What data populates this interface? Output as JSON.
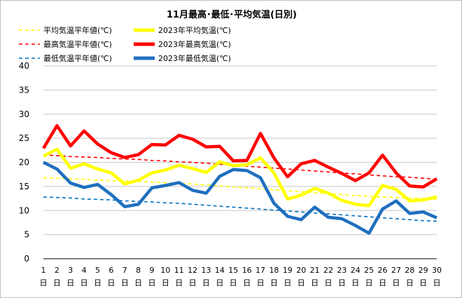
{
  "chart_data": {
    "type": "line",
    "title": "11月最高･最低･平均気温(日別)",
    "ylim": [
      0,
      40
    ],
    "yticks": [
      0,
      5,
      10,
      15,
      20,
      25,
      30,
      35,
      40
    ],
    "grid": true,
    "legend_position": "top",
    "x": [
      1,
      2,
      3,
      4,
      5,
      6,
      7,
      8,
      9,
      10,
      11,
      12,
      13,
      14,
      15,
      16,
      17,
      18,
      19,
      20,
      21,
      22,
      23,
      24,
      25,
      26,
      27,
      28,
      29,
      30
    ],
    "x_suffix": "日",
    "series": [
      {
        "name": "平均気温平年値(℃)",
        "color": "#ffff00",
        "style": "dashed",
        "values": [
          16.8,
          16.7,
          16.6,
          16.5,
          16.3,
          16.2,
          16.1,
          16.0,
          15.9,
          15.8,
          15.6,
          15.5,
          15.3,
          15.1,
          14.9,
          14.7,
          14.5,
          14.3,
          14.1,
          13.9,
          13.7,
          13.5,
          13.3,
          13.1,
          12.9,
          12.8,
          12.7,
          12.6,
          12.5,
          12.4
        ]
      },
      {
        "name": "2023年平均気温(℃)",
        "color": "#ffff00",
        "style": "solid",
        "values": [
          21.3,
          22.7,
          18.8,
          19.7,
          18.6,
          17.8,
          15.5,
          16.3,
          17.8,
          18.4,
          19.4,
          18.7,
          17.9,
          20.1,
          19.3,
          19.5,
          20.9,
          17.8,
          12.4,
          13.2,
          14.6,
          13.6,
          12.1,
          11.3,
          11.0,
          15.2,
          14.4,
          12.0,
          12.2,
          12.8
        ]
      },
      {
        "name": "最高気温平年値(℃)",
        "color": "#ff0000",
        "style": "dashed",
        "values": [
          21.5,
          21.4,
          21.2,
          21.1,
          21.0,
          20.8,
          20.7,
          20.6,
          20.4,
          20.3,
          20.1,
          20.0,
          19.8,
          19.6,
          19.4,
          19.2,
          19.0,
          18.8,
          18.6,
          18.4,
          18.2,
          18.0,
          17.8,
          17.6,
          17.4,
          17.2,
          17.0,
          16.9,
          16.7,
          16.5
        ]
      },
      {
        "name": "2023年最高気温(℃)",
        "color": "#ff0000",
        "style": "solid",
        "values": [
          22.9,
          27.6,
          23.4,
          26.5,
          23.8,
          22.0,
          21.0,
          21.6,
          23.7,
          23.6,
          25.6,
          24.8,
          23.2,
          23.3,
          20.3,
          20.4,
          26.0,
          20.9,
          17.0,
          19.7,
          20.4,
          19.0,
          17.7,
          16.2,
          17.8,
          21.5,
          17.8,
          15.1,
          14.9,
          16.6
        ]
      },
      {
        "name": "最低気温平年値(℃)",
        "color": "#0070c0",
        "style": "dashed",
        "values": [
          12.8,
          12.7,
          12.6,
          12.4,
          12.3,
          12.2,
          12.0,
          11.9,
          11.8,
          11.6,
          11.5,
          11.3,
          11.1,
          10.9,
          10.7,
          10.5,
          10.3,
          10.1,
          9.9,
          9.7,
          9.5,
          9.3,
          9.1,
          8.9,
          8.7,
          8.5,
          8.3,
          8.1,
          7.9,
          7.8
        ]
      },
      {
        "name": "2023年最低気温(℃)",
        "color": "#1f6fbf",
        "style": "solid",
        "values": [
          20.0,
          18.6,
          15.7,
          14.8,
          15.4,
          13.3,
          10.8,
          11.3,
          14.7,
          15.2,
          15.8,
          14.2,
          13.6,
          17.1,
          18.5,
          18.3,
          16.8,
          11.5,
          8.8,
          8.1,
          10.7,
          8.6,
          8.3,
          6.9,
          5.3,
          10.3,
          12.0,
          9.4,
          9.7,
          8.5
        ]
      }
    ]
  }
}
